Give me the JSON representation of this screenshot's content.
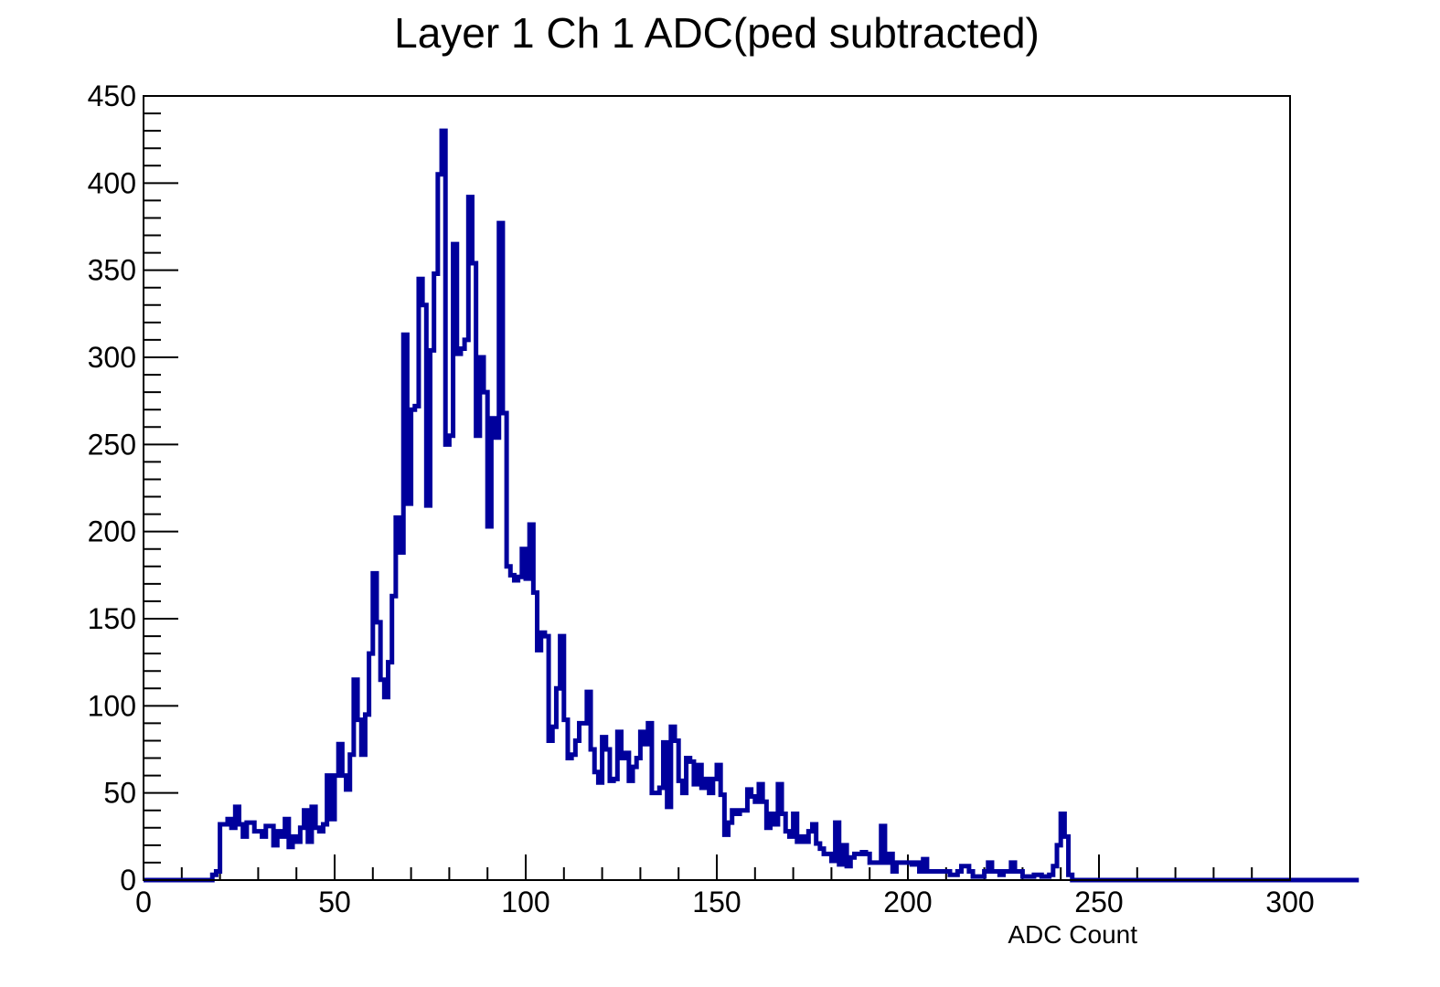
{
  "chart_data": {
    "type": "histogram",
    "title": "Layer 1 Ch 1 ADC(ped subtracted)",
    "xlabel": "ADC Count",
    "ylabel": "",
    "xlim": [
      0,
      300
    ],
    "ylim": [
      0,
      450
    ],
    "x_ticks": [
      "0",
      "50",
      "100",
      "150",
      "200",
      "250",
      "300"
    ],
    "y_ticks": [
      "0",
      "50",
      "100",
      "150",
      "200",
      "250",
      "300",
      "350",
      "400",
      "450"
    ],
    "bin_width": 1,
    "grid": false,
    "line_color": "#00009c",
    "series": [
      {
        "values": [
          0,
          0,
          0,
          0,
          0,
          0,
          0,
          0,
          0,
          0,
          0,
          0,
          0,
          0,
          0,
          0,
          0,
          0,
          3,
          5,
          32,
          32,
          35,
          30,
          42,
          32,
          25,
          33,
          33,
          28,
          28,
          25,
          31,
          31,
          20,
          28,
          25,
          35,
          19,
          25,
          22,
          30,
          40,
          22,
          42,
          30,
          28,
          32,
          60,
          35,
          60,
          78,
          60,
          52,
          72,
          115,
          92,
          72,
          95,
          130,
          176,
          148,
          115,
          105,
          125,
          163,
          208,
          188,
          313,
          216,
          270,
          272,
          345,
          330,
          215,
          304,
          348,
          405,
          430,
          250,
          255,
          365,
          302,
          305,
          310,
          392,
          354,
          255,
          300,
          280,
          203,
          265,
          254,
          377,
          268,
          180,
          175,
          172,
          174,
          190,
          173,
          204,
          165,
          132,
          142,
          140,
          80,
          88,
          110,
          140,
          92,
          70,
          72,
          80,
          90,
          90,
          108,
          75,
          62,
          56,
          82,
          75,
          57,
          58,
          85,
          70,
          73,
          57,
          65,
          70,
          85,
          78,
          90,
          50,
          50,
          53,
          79,
          42,
          88,
          80,
          57,
          50,
          70,
          68,
          55,
          66,
          53,
          58,
          50,
          58,
          66,
          49,
          26,
          33,
          40,
          38,
          40,
          40,
          52,
          48,
          45,
          55,
          45,
          30,
          38,
          32,
          55,
          38,
          28,
          25,
          38,
          22,
          25,
          22,
          28,
          32,
          21,
          18,
          15,
          15,
          11,
          33,
          9,
          20,
          8,
          13,
          15,
          15,
          16,
          15,
          10,
          10,
          10,
          31,
          10,
          15,
          5,
          10,
          10,
          10,
          10,
          9,
          10,
          5,
          12,
          5,
          5,
          5,
          5,
          5,
          5,
          3,
          3,
          5,
          8,
          8,
          5,
          2,
          2,
          2,
          5,
          10,
          5,
          5,
          3,
          5,
          5,
          10,
          5,
          5,
          2,
          2,
          2,
          3,
          3,
          2,
          2,
          3,
          8,
          20,
          38,
          25,
          3,
          0,
          0,
          0,
          0,
          0,
          0,
          0,
          0,
          0,
          0,
          0,
          0,
          0,
          0,
          0,
          0,
          0,
          0,
          0,
          0,
          0,
          0,
          0,
          0,
          0,
          0,
          0,
          0,
          0,
          0,
          0,
          0,
          0,
          0,
          0,
          0,
          0,
          0,
          0,
          0,
          0,
          0,
          0,
          0,
          0,
          0,
          0,
          0,
          0,
          0,
          0,
          0,
          0,
          0,
          0,
          0,
          0,
          0,
          0,
          0,
          0,
          0,
          0,
          0,
          0,
          0,
          0,
          0,
          0,
          0,
          0,
          0,
          0,
          0,
          0,
          0
        ]
      }
    ]
  }
}
